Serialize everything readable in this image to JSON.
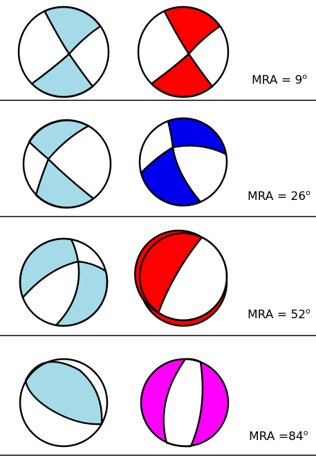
{
  "rows": [
    {
      "label": "MRA = 9",
      "sup": "o"
    },
    {
      "label": "MRA = 26",
      "sup": "o"
    },
    {
      "label": "MRA = 52",
      "sup": "o"
    },
    {
      "label": "MRA =84",
      "sup": "o"
    }
  ]
}
